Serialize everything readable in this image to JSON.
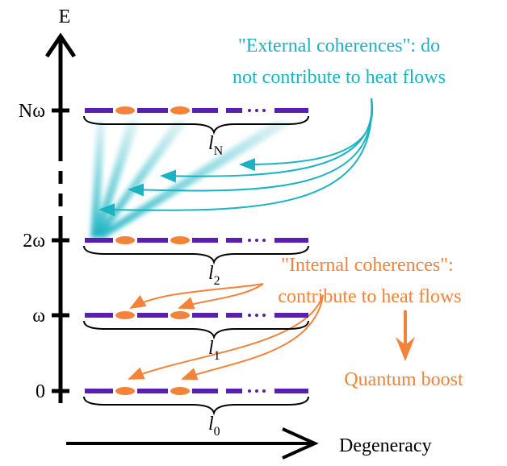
{
  "axes": {
    "energy_label": "E",
    "degeneracy_label": "Degeneracy"
  },
  "levels": [
    {
      "energy": "Nω",
      "block": "l",
      "block_sub": "N"
    },
    {
      "energy": "2ω",
      "block": "l",
      "block_sub": "2"
    },
    {
      "energy": "ω",
      "block": "l",
      "block_sub": "1"
    },
    {
      "energy": "0",
      "block": "l",
      "block_sub": "0"
    }
  ],
  "external_note": {
    "lines": [
      "\"External coherences\": do",
      "not contribute to heat flows"
    ]
  },
  "internal_note": {
    "lines": [
      "\"Internal coherences\":",
      "contribute to heat flows"
    ]
  },
  "boost": "Quantum boost"
}
